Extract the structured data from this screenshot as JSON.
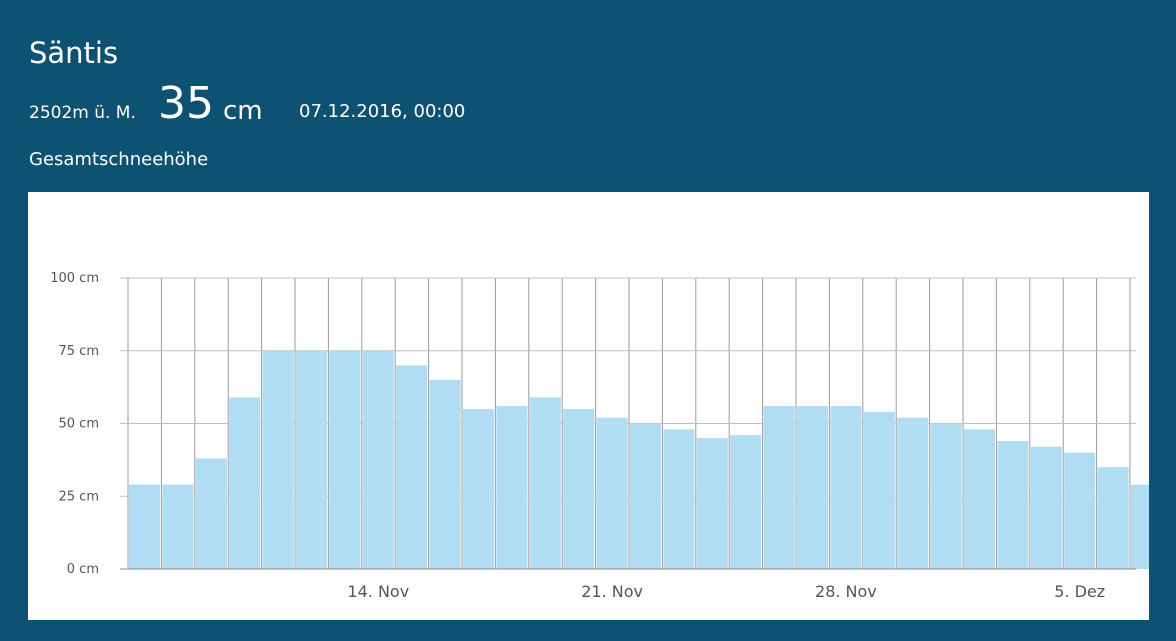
{
  "station": {
    "name": "Säntis",
    "altitude": "2502m ü. M.",
    "snow_value": "35",
    "snow_unit": "cm",
    "timestamp": "07.12.2016, 00:00",
    "metric_label": "Gesamtschneehöhe"
  },
  "colors": {
    "background": "#0e5273",
    "bar": "#b0dcf4",
    "grid": "#bfbfbf",
    "text": "#555555"
  },
  "chart_data": {
    "type": "bar",
    "title": "",
    "xlabel": "",
    "ylabel": "",
    "ylim": [
      0,
      100
    ],
    "grid": true,
    "y_ticks": [
      0,
      25,
      50,
      75,
      100
    ],
    "y_tick_labels": [
      "0 cm",
      "25 cm",
      "50 cm",
      "75 cm",
      "100 cm"
    ],
    "x_tick_labels": [
      {
        "label": "14. Nov",
        "at": "14.11."
      },
      {
        "label": "21. Nov",
        "at": "21.11."
      },
      {
        "label": "28. Nov",
        "at": "28.11."
      },
      {
        "label": "5. Dez",
        "at": "05.12."
      }
    ],
    "categories": [
      "07.11.",
      "08.11.",
      "09.11.",
      "10.11.",
      "11.11.",
      "12.11.",
      "13.11.",
      "14.11.",
      "15.11.",
      "16.11.",
      "17.11.",
      "18.11.",
      "19.11.",
      "20.11.",
      "21.11.",
      "22.11.",
      "23.11.",
      "24.11.",
      "25.11.",
      "26.11.",
      "27.11.",
      "28.11.",
      "29.11.",
      "30.11.",
      "01.12.",
      "02.12.",
      "03.12.",
      "04.12.",
      "05.12.",
      "06.12.",
      "07.12."
    ],
    "values": [
      29,
      29,
      38,
      59,
      75,
      75,
      75,
      75,
      70,
      65,
      55,
      56,
      59,
      55,
      52,
      50,
      48,
      45,
      46,
      56,
      56,
      56,
      54,
      52,
      50,
      48,
      44,
      42,
      40,
      35,
      29
    ]
  }
}
